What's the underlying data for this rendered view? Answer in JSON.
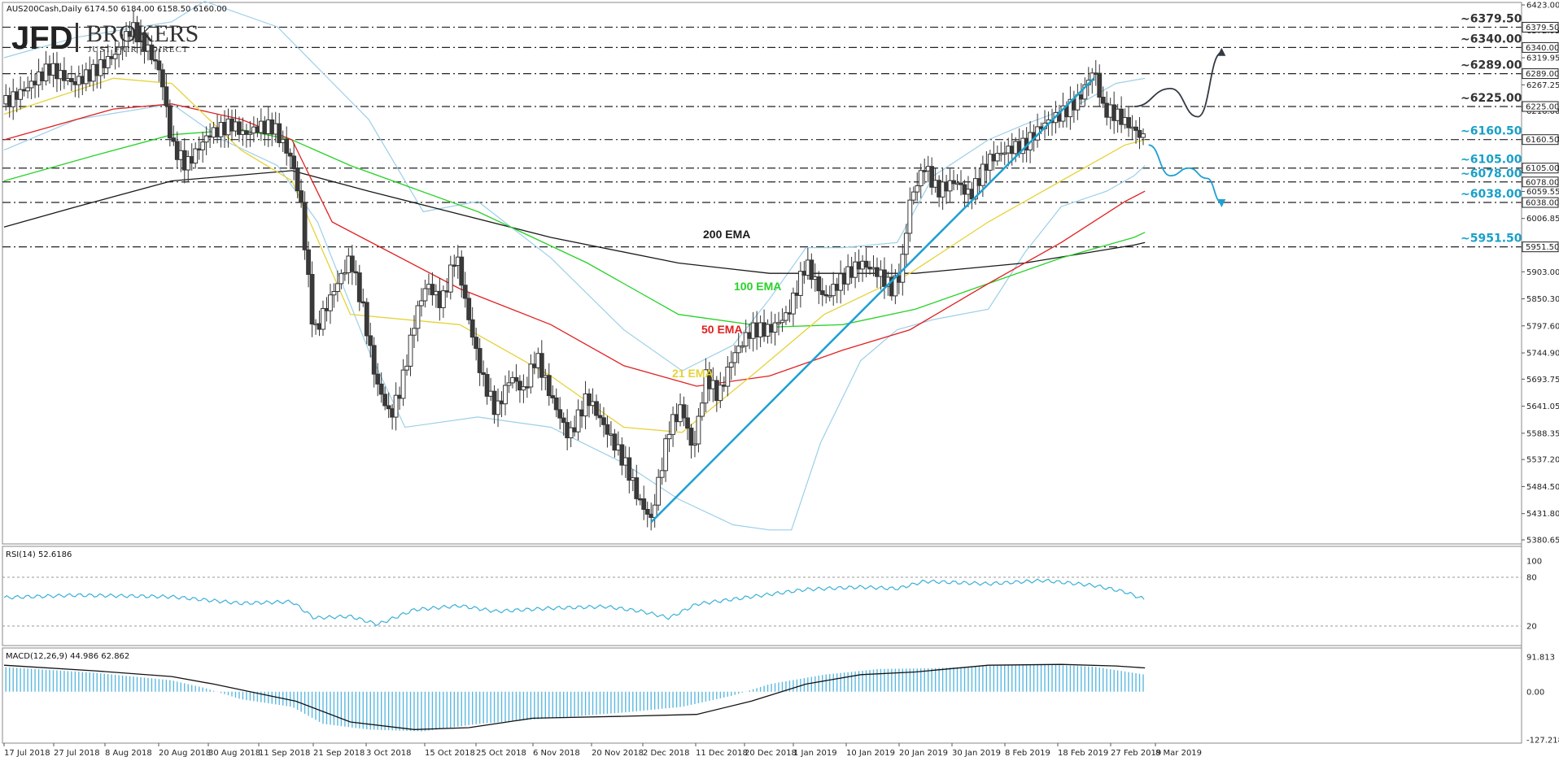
{
  "header": {
    "symbol_info": "AUS200Cash,Daily  6174.50 6184.00 6158.50 6160.00",
    "logo_main": "JFD",
    "logo_brokers": "BROKERS",
    "logo_tagline": "JUST FAIR & DIRECT"
  },
  "colors": {
    "bull_candle": "#ffffff",
    "bear_candle": "#3a3a3a",
    "ema21": "#e6d23a",
    "ema50": "#e02020",
    "ema100": "#28d228",
    "ema200": "#1a1a1a",
    "bollinger": "#9ccfe8",
    "trendline": "#1ea0d2",
    "level_dark": "#333333",
    "level_blue": "#1aa0c8",
    "rsi_line": "#3ab0d8",
    "macd_hist": "#5ab8e0",
    "macd_signal": "#111111"
  },
  "chart_data": {
    "type": "candlestick",
    "instrument": "AUS200Cash",
    "timeframe": "Daily",
    "ohlc_last": {
      "open": 6174.5,
      "high": 6184.0,
      "low": 6158.5,
      "close": 6160.0
    },
    "x_tick_labels": [
      "17 Jul 2018",
      "27 Jul 2018",
      "8 Aug 2018",
      "20 Aug 2018",
      "30 Aug 2018",
      "11 Sep 2018",
      "21 Sep 2018",
      "3 Oct 2018",
      "15 Oct 2018",
      "25 Oct 2018",
      "6 Nov 2018",
      "20 Nov 2018",
      "2 Dec 2018",
      "11 Dec 2018",
      "20 Dec 2018",
      "1 Jan 2019",
      "10 Jan 2019",
      "20 Jan 2019",
      "30 Jan 2019",
      "8 Feb 2019",
      "18 Feb 2019",
      "27 Feb 2019",
      "8 Mar 2019"
    ],
    "y_tick_labels": [
      "6423.00",
      "6372.95",
      "6319.95",
      "6267.25",
      "6216.00",
      "6161.60",
      "6105.00",
      "6059.55",
      "6006.85",
      "5903.00",
      "5850.30",
      "5797.60",
      "5744.90",
      "5693.75",
      "5641.05",
      "5588.35",
      "5537.20",
      "5484.50",
      "5431.80",
      "5380.65"
    ],
    "ylim": [
      5380.65,
      6423.0
    ],
    "ema_labels": [
      "200 EMA",
      "100 EMA",
      "50 EMA",
      "21 EMA"
    ],
    "levels": [
      {
        "label": "~6379.50",
        "value": 6379.5,
        "tag": "6379.50",
        "style": "dark"
      },
      {
        "label": "~6340.00",
        "value": 6340.0,
        "tag": "6340.00",
        "style": "dark"
      },
      {
        "label": "~6289.00",
        "value": 6289.0,
        "tag": "6289.00",
        "style": "dark"
      },
      {
        "label": "~6225.00",
        "value": 6225.0,
        "tag": "6225.00",
        "style": "dark"
      },
      {
        "label": "~6160.50",
        "value": 6160.5,
        "tag": "6160.50",
        "style": "blue"
      },
      {
        "label": "~6105.00",
        "value": 6105.0,
        "tag": "6105.00",
        "style": "blue"
      },
      {
        "label": "~6078.00",
        "value": 6078.0,
        "tag": "6078.00",
        "style": "blue"
      },
      {
        "label": "~6038.00",
        "value": 6038.0,
        "tag": "6038.00",
        "style": "blue"
      },
      {
        "label": "~5951.50",
        "value": 5951.5,
        "tag": "5951.50",
        "style": "blue"
      }
    ],
    "price_path": [
      [
        0,
        6230
      ],
      [
        12,
        6260
      ],
      [
        25,
        6300
      ],
      [
        38,
        6270
      ],
      [
        48,
        6290
      ],
      [
        62,
        6330
      ],
      [
        70,
        6380
      ],
      [
        80,
        6330
      ],
      [
        86,
        6290
      ],
      [
        92,
        6150
      ],
      [
        100,
        6110
      ],
      [
        112,
        6170
      ],
      [
        125,
        6190
      ],
      [
        132,
        6170
      ],
      [
        140,
        6185
      ],
      [
        148,
        6185
      ],
      [
        158,
        6120
      ],
      [
        163,
        6030
      ],
      [
        166,
        5920
      ],
      [
        170,
        5780
      ],
      [
        180,
        5860
      ],
      [
        190,
        5930
      ],
      [
        197,
        5830
      ],
      [
        204,
        5690
      ],
      [
        212,
        5620
      ],
      [
        218,
        5680
      ],
      [
        226,
        5820
      ],
      [
        232,
        5880
      ],
      [
        240,
        5840
      ],
      [
        248,
        5940
      ],
      [
        255,
        5810
      ],
      [
        262,
        5700
      ],
      [
        270,
        5630
      ],
      [
        278,
        5700
      ],
      [
        285,
        5670
      ],
      [
        292,
        5740
      ],
      [
        300,
        5660
      ],
      [
        310,
        5580
      ],
      [
        320,
        5660
      ],
      [
        328,
        5610
      ],
      [
        336,
        5560
      ],
      [
        342,
        5520
      ],
      [
        348,
        5460
      ],
      [
        355,
        5420
      ],
      [
        365,
        5600
      ],
      [
        372,
        5640
      ],
      [
        378,
        5550
      ],
      [
        385,
        5700
      ],
      [
        392,
        5660
      ],
      [
        400,
        5740
      ],
      [
        410,
        5790
      ],
      [
        420,
        5790
      ],
      [
        430,
        5820
      ],
      [
        440,
        5920
      ],
      [
        450,
        5850
      ],
      [
        460,
        5890
      ],
      [
        470,
        5920
      ],
      [
        480,
        5900
      ],
      [
        487,
        5870
      ],
      [
        492,
        5900
      ],
      [
        497,
        6040
      ],
      [
        505,
        6110
      ],
      [
        512,
        6060
      ],
      [
        522,
        6080
      ],
      [
        530,
        6050
      ],
      [
        540,
        6120
      ],
      [
        550,
        6140
      ],
      [
        560,
        6150
      ],
      [
        570,
        6190
      ],
      [
        580,
        6210
      ],
      [
        590,
        6240
      ],
      [
        598,
        6300
      ],
      [
        603,
        6220
      ],
      [
        610,
        6210
      ],
      [
        620,
        6180
      ],
      [
        626,
        6160
      ]
    ],
    "ema21_path": [
      [
        0,
        6210
      ],
      [
        60,
        6280
      ],
      [
        92,
        6270
      ],
      [
        130,
        6140
      ],
      [
        158,
        6080
      ],
      [
        190,
        5820
      ],
      [
        250,
        5800
      ],
      [
        300,
        5700
      ],
      [
        340,
        5600
      ],
      [
        372,
        5590
      ],
      [
        410,
        5700
      ],
      [
        450,
        5820
      ],
      [
        497,
        5900
      ],
      [
        540,
        6000
      ],
      [
        580,
        6080
      ],
      [
        615,
        6150
      ],
      [
        626,
        6160
      ]
    ],
    "ema50_path": [
      [
        0,
        6160
      ],
      [
        60,
        6220
      ],
      [
        92,
        6230
      ],
      [
        130,
        6200
      ],
      [
        158,
        6160
      ],
      [
        180,
        6000
      ],
      [
        250,
        5870
      ],
      [
        300,
        5800
      ],
      [
        340,
        5720
      ],
      [
        380,
        5680
      ],
      [
        420,
        5700
      ],
      [
        460,
        5750
      ],
      [
        497,
        5790
      ],
      [
        540,
        5880
      ],
      [
        580,
        5960
      ],
      [
        615,
        6040
      ],
      [
        626,
        6060
      ]
    ],
    "ema100_path": [
      [
        0,
        6080
      ],
      [
        50,
        6130
      ],
      [
        92,
        6170
      ],
      [
        130,
        6180
      ],
      [
        158,
        6160
      ],
      [
        190,
        6110
      ],
      [
        260,
        6020
      ],
      [
        320,
        5920
      ],
      [
        370,
        5820
      ],
      [
        420,
        5795
      ],
      [
        460,
        5800
      ],
      [
        500,
        5830
      ],
      [
        540,
        5880
      ],
      [
        580,
        5930
      ],
      [
        620,
        5970
      ],
      [
        626,
        5980
      ]
    ],
    "ema200_path": [
      [
        0,
        5990
      ],
      [
        40,
        6030
      ],
      [
        92,
        6080
      ],
      [
        158,
        6100
      ],
      [
        200,
        6060
      ],
      [
        300,
        5970
      ],
      [
        370,
        5920
      ],
      [
        420,
        5900
      ],
      [
        500,
        5900
      ],
      [
        560,
        5920
      ],
      [
        620,
        5955
      ],
      [
        626,
        5960
      ]
    ],
    "bb_upper": [
      [
        0,
        6320
      ],
      [
        40,
        6360
      ],
      [
        92,
        6390
      ],
      [
        110,
        6430
      ],
      [
        150,
        6380
      ],
      [
        175,
        6290
      ],
      [
        200,
        6200
      ],
      [
        230,
        6020
      ],
      [
        260,
        6040
      ],
      [
        300,
        5930
      ],
      [
        340,
        5790
      ],
      [
        372,
        5710
      ],
      [
        400,
        5760
      ],
      [
        420,
        5850
      ],
      [
        440,
        5950
      ],
      [
        460,
        5950
      ],
      [
        490,
        5960
      ],
      [
        510,
        6090
      ],
      [
        540,
        6160
      ],
      [
        560,
        6190
      ],
      [
        590,
        6230
      ],
      [
        610,
        6270
      ],
      [
        626,
        6280
      ]
    ],
    "bb_lower": [
      [
        0,
        6140
      ],
      [
        40,
        6200
      ],
      [
        92,
        6230
      ],
      [
        120,
        6160
      ],
      [
        150,
        6110
      ],
      [
        172,
        6000
      ],
      [
        200,
        5750
      ],
      [
        220,
        5600
      ],
      [
        260,
        5620
      ],
      [
        300,
        5600
      ],
      [
        340,
        5530
      ],
      [
        370,
        5460
      ],
      [
        400,
        5410
      ],
      [
        420,
        5400
      ],
      [
        432,
        5400
      ],
      [
        448,
        5570
      ],
      [
        470,
        5730
      ],
      [
        490,
        5790
      ],
      [
        510,
        5810
      ],
      [
        540,
        5830
      ],
      [
        560,
        5940
      ],
      [
        580,
        6030
      ],
      [
        605,
        6060
      ],
      [
        620,
        6090
      ],
      [
        626,
        6110
      ]
    ],
    "trendline": [
      [
        355,
        5415
      ],
      [
        598,
        6280
      ]
    ],
    "projection_up": [
      [
        620,
        6225
      ],
      [
        640,
        6260
      ],
      [
        655,
        6205
      ],
      [
        668,
        6330
      ]
    ],
    "projection_down": [
      [
        628,
        6150
      ],
      [
        640,
        6090
      ],
      [
        650,
        6105
      ],
      [
        660,
        6085
      ],
      [
        668,
        6038
      ]
    ],
    "rsi": {
      "label": "RSI(14) 52.6186",
      "ticks": [
        "100",
        "80",
        "20"
      ],
      "levels": [
        80,
        20
      ],
      "ylim": [
        0,
        100
      ],
      "path": [
        [
          0,
          55
        ],
        [
          40,
          58
        ],
        [
          92,
          56
        ],
        [
          130,
          48
        ],
        [
          158,
          50
        ],
        [
          170,
          30
        ],
        [
          190,
          32
        ],
        [
          205,
          22
        ],
        [
          225,
          40
        ],
        [
          250,
          45
        ],
        [
          270,
          38
        ],
        [
          300,
          42
        ],
        [
          330,
          44
        ],
        [
          350,
          38
        ],
        [
          365,
          30
        ],
        [
          380,
          47
        ],
        [
          410,
          56
        ],
        [
          440,
          65
        ],
        [
          470,
          68
        ],
        [
          490,
          66
        ],
        [
          505,
          75
        ],
        [
          540,
          72
        ],
        [
          570,
          76
        ],
        [
          598,
          70
        ],
        [
          615,
          62
        ],
        [
          626,
          52.6
        ]
      ]
    },
    "macd": {
      "label": "MACD(12,26,9) 44.986 62.862",
      "ticks": [
        "91.813",
        "0.00",
        "-127.218"
      ],
      "ylim": [
        -127.218,
        91.813
      ],
      "hist_path": [
        [
          0,
          65
        ],
        [
          50,
          50
        ],
        [
          92,
          30
        ],
        [
          110,
          10
        ],
        [
          130,
          -20
        ],
        [
          158,
          -40
        ],
        [
          175,
          -85
        ],
        [
          200,
          -100
        ],
        [
          230,
          -105
        ],
        [
          260,
          -85
        ],
        [
          300,
          -70
        ],
        [
          340,
          -55
        ],
        [
          372,
          -40
        ],
        [
          400,
          -10
        ],
        [
          420,
          20
        ],
        [
          450,
          45
        ],
        [
          480,
          60
        ],
        [
          510,
          62
        ],
        [
          540,
          68
        ],
        [
          570,
          72
        ],
        [
          598,
          66
        ],
        [
          626,
          44.99
        ]
      ],
      "signal_path": [
        [
          0,
          70
        ],
        [
          50,
          55
        ],
        [
          92,
          40
        ],
        [
          115,
          20
        ],
        [
          140,
          -5
        ],
        [
          160,
          -25
        ],
        [
          190,
          -80
        ],
        [
          225,
          -100
        ],
        [
          255,
          -95
        ],
        [
          290,
          -70
        ],
        [
          340,
          -65
        ],
        [
          380,
          -60
        ],
        [
          410,
          -25
        ],
        [
          440,
          20
        ],
        [
          470,
          45
        ],
        [
          500,
          52
        ],
        [
          540,
          70
        ],
        [
          580,
          72
        ],
        [
          610,
          68
        ],
        [
          626,
          62.86
        ]
      ]
    }
  }
}
